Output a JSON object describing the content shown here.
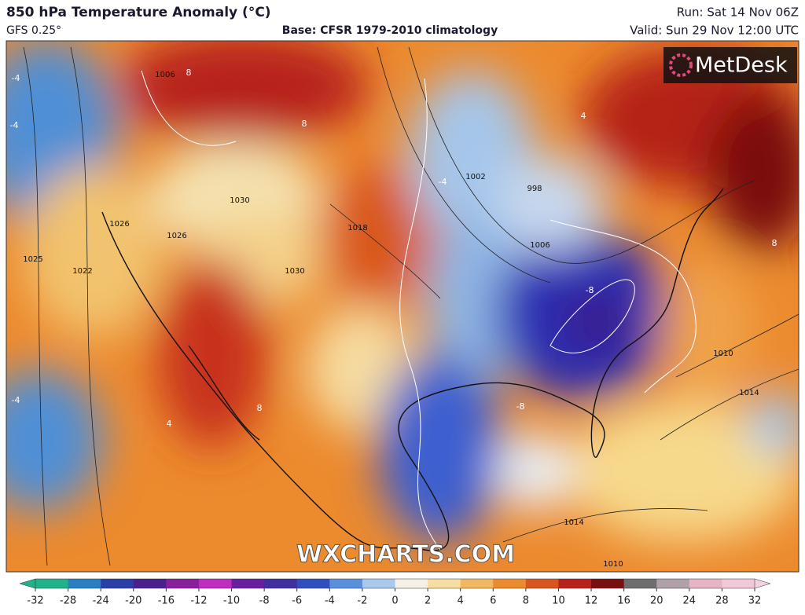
{
  "header": {
    "title": "850 hPa Temperature Anomaly (°C)",
    "model": "GFS 0.25°",
    "base": "Base: CFSR 1979-2010 climatology",
    "run": "Run: Sat 14 Nov 06Z",
    "valid": "Valid: Sun 29 Nov 12:00 UTC"
  },
  "logo": "MetDesk",
  "watermark": "WXCHARTS.COM",
  "isobar_labels": [
    "1006",
    "1026",
    "1026",
    "1025",
    "1022",
    "1030",
    "1030",
    "1018",
    "1002",
    "998",
    "1006",
    "1010",
    "1014",
    "1014",
    "1010"
  ],
  "anomaly_labels": [
    "-4",
    "-4",
    "8",
    "8",
    "-8",
    "-8",
    "4",
    "-4",
    "4",
    "8",
    "8",
    "-4"
  ],
  "colorbar": {
    "ticks": [
      -32,
      -28,
      -24,
      -20,
      -16,
      -12,
      -10,
      -8,
      -6,
      -4,
      -2,
      0,
      2,
      4,
      6,
      8,
      10,
      12,
      16,
      20,
      24,
      28,
      32
    ]
  }
}
